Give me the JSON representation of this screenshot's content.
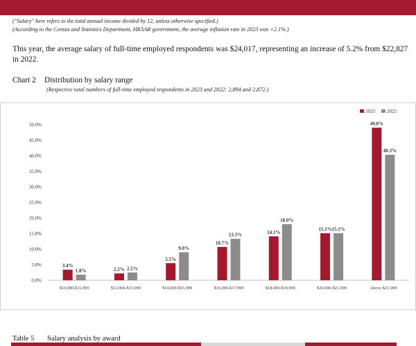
{
  "notes": {
    "line1": "(\"Salary\" here refers to the total annual income divided by 12, unless otherwise specified.)",
    "line2": "(According to the Census and Statistics Department, HKSAR government, the average inflation rate in 2023 was +2.1%.)"
  },
  "paragraph": "This year, the average salary of full-time employed respondents was $24,017, representing an increase of 5.2% from $22,827 in 2022.",
  "chart_caption": {
    "number": "Chart 2",
    "title": "Distribution by salary range",
    "subtitle": "(Respective total numbers of full-time employed respondents in 2023 and 2022: 2,894 and 2,872.)"
  },
  "table_caption": {
    "number": "Table 5",
    "title": "Salary analysis by award"
  },
  "chart_data": {
    "type": "bar",
    "categories": [
      "$10,000-$11,999",
      "$12,000-$13,999",
      "$14,000-$15,999",
      "$16,000-$17,999",
      "$18,000-$19,999",
      "$20,000-$21,999",
      "Above $21,999"
    ],
    "series": [
      {
        "name": "2023",
        "color": "#a5192e",
        "values": [
          3.4,
          2.2,
          5.5,
          10.7,
          14.1,
          15.1,
          49.0
        ],
        "labels": [
          "3.4%",
          "2.2%",
          "5.5%",
          "10.7%",
          "14.1%",
          "15.1%",
          "49.0%"
        ]
      },
      {
        "name": "2022",
        "color": "#8c8c8c",
        "values": [
          1.8,
          2.5,
          9.0,
          13.3,
          18.0,
          15.1,
          40.3
        ],
        "labels": [
          "1.8%",
          "2.5%",
          "9.0%",
          "13.3%",
          "18.0%",
          "15.1%",
          "40.3%"
        ]
      }
    ],
    "yticks": [
      0,
      5,
      10,
      15,
      20,
      25,
      30,
      35,
      40,
      45,
      50
    ],
    "ytick_labels": [
      "0.0%",
      "5.0%",
      "10.0%",
      "15.0%",
      "20.0%",
      "25.0%",
      "30.0%",
      "35.0%",
      "40.0%",
      "45.0%",
      "50.0%"
    ],
    "ylim": [
      0,
      50
    ],
    "grid": false,
    "legend_position": "top-right"
  }
}
